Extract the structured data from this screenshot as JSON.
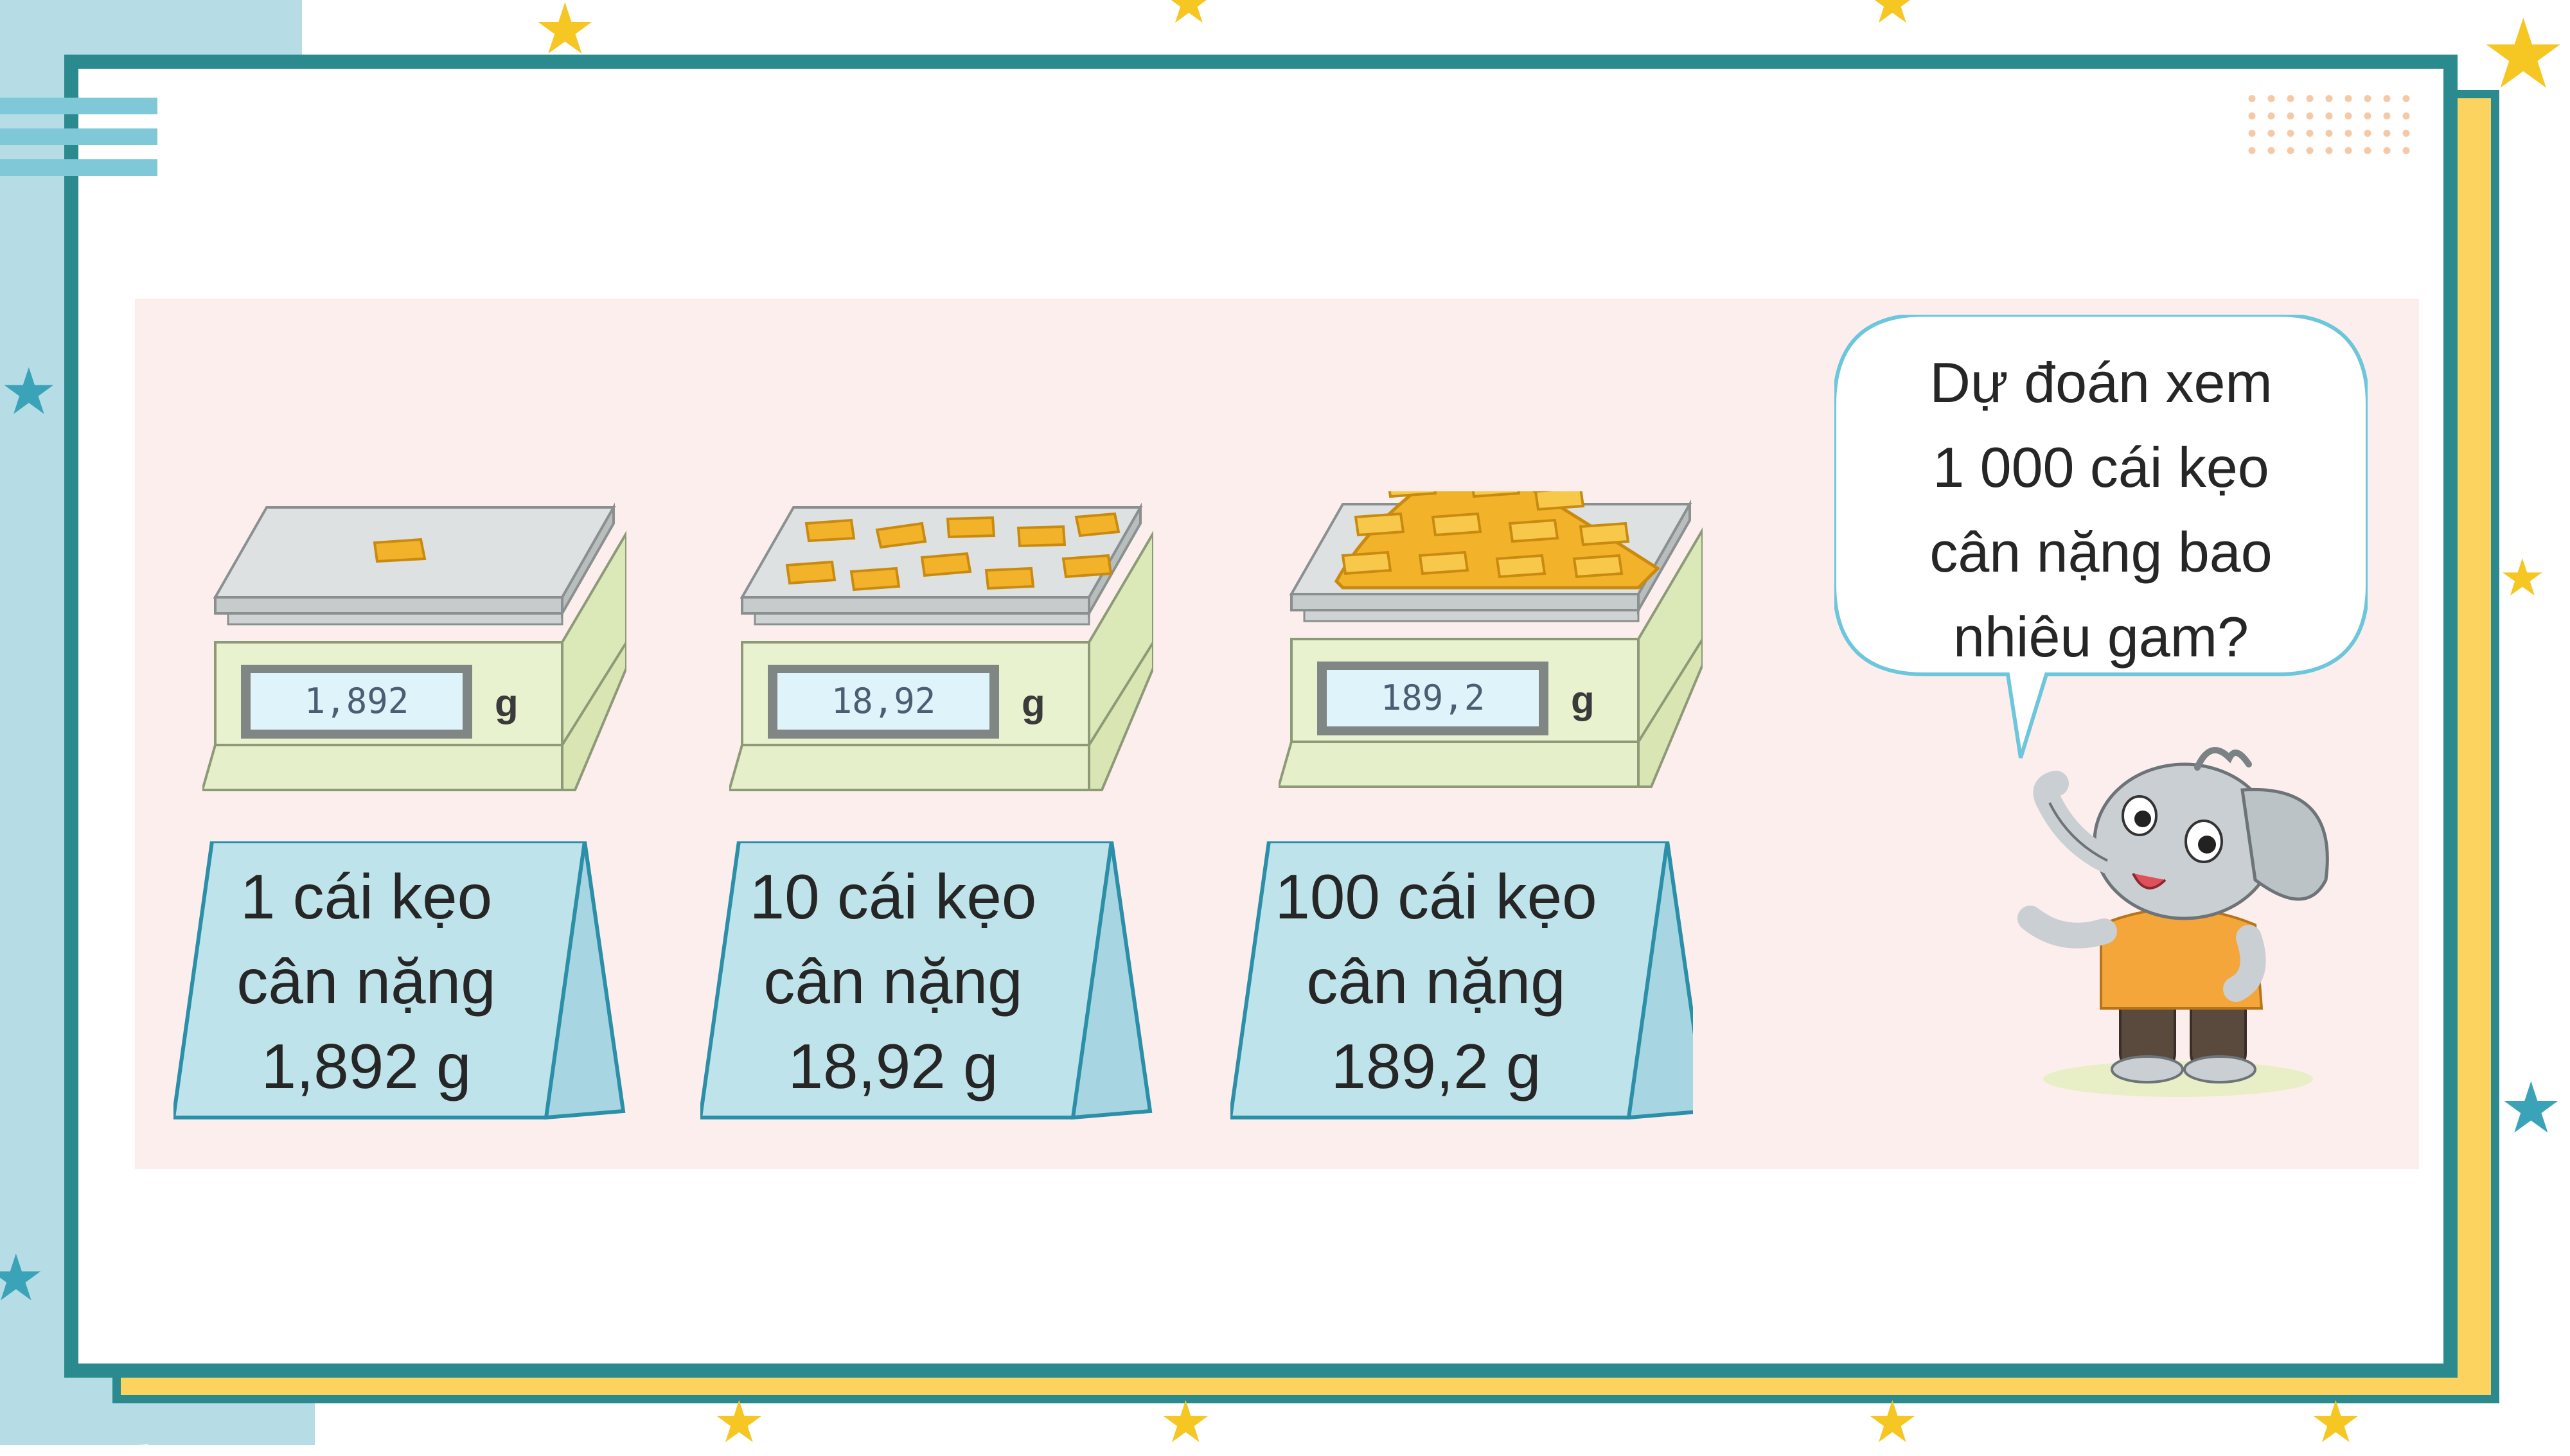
{
  "scales": [
    {
      "display": "1,892",
      "unit": "g"
    },
    {
      "display": "18,92",
      "unit": "g"
    },
    {
      "display": "189,2",
      "unit": "g"
    }
  ],
  "cards": [
    {
      "line1": "1 cái kẹo",
      "line2": "cân nặng",
      "line3": "1,892 g"
    },
    {
      "line1": "10 cái kẹo",
      "line2": "cân nặng",
      "line3": "18,92 g"
    },
    {
      "line1": "100 cái kẹo",
      "line2": "cân nặng",
      "line3": "189,2 g"
    }
  ],
  "speech_bubble": {
    "line1": "Dự đoán xem",
    "line2": "1 000 cái kẹo",
    "line3": "cân nặng bao",
    "line4": "nhiêu gam?"
  },
  "colors": {
    "frame": "#2a8a8e",
    "frame_back": "#fbd35e",
    "panel": "#fdeeee",
    "card": "#bfe3ea",
    "candy": "#f2b32a"
  }
}
